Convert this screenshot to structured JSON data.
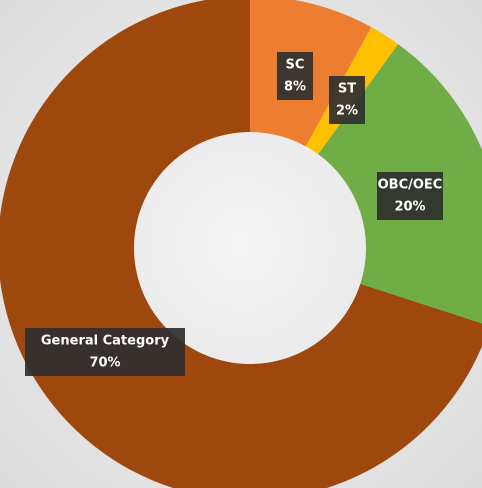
{
  "chart_data": {
    "type": "donut",
    "categories": [
      "SC",
      "ST",
      "OBC/OEC",
      "General Category"
    ],
    "values": [
      8,
      2,
      20,
      70
    ],
    "value_labels": [
      "8%",
      "2%",
      "20%",
      "70%"
    ],
    "colors": [
      "#ED7D31",
      "#FFC000",
      "#70AD47",
      "#9E480E"
    ]
  }
}
